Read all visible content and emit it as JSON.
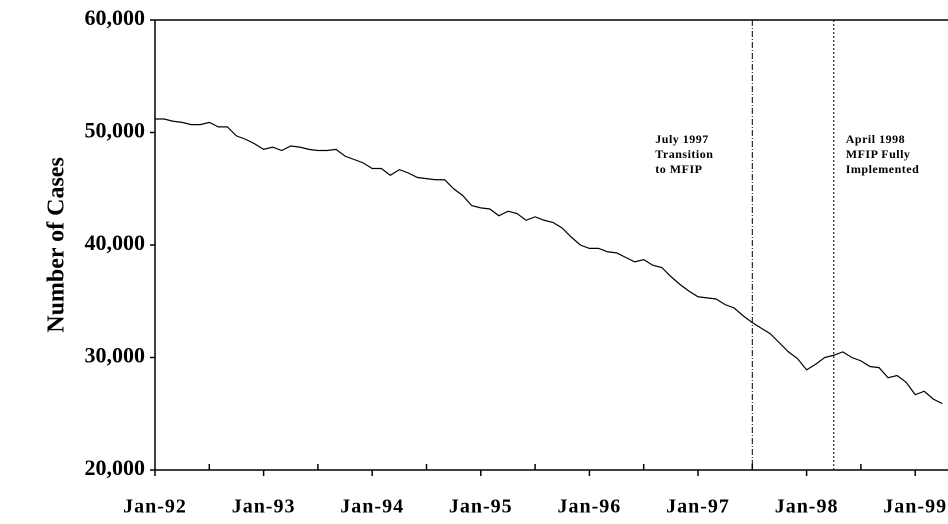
{
  "chart_data": {
    "type": "line",
    "y_label": "Number of Cases",
    "categories": [
      "Jan-92",
      null,
      null,
      null,
      null,
      null,
      null,
      null,
      null,
      null,
      null,
      null,
      "Jan-93",
      null,
      null,
      null,
      null,
      null,
      null,
      null,
      null,
      null,
      null,
      null,
      "Jan-94",
      null,
      null,
      null,
      null,
      null,
      null,
      null,
      null,
      null,
      null,
      null,
      "Jan-95",
      null,
      null,
      null,
      null,
      null,
      null,
      null,
      null,
      null,
      null,
      null,
      "Jan-96",
      null,
      null,
      null,
      null,
      null,
      null,
      null,
      null,
      null,
      null,
      null,
      "Jan-97",
      null,
      null,
      null,
      null,
      null,
      null,
      null,
      null,
      null,
      null,
      null,
      "Jan-98",
      null,
      null,
      null,
      null,
      null,
      null,
      null,
      null,
      null,
      null,
      null,
      "Jan-99",
      null,
      null,
      null
    ],
    "values": [
      51200,
      51200,
      51000,
      50900,
      50700,
      50700,
      50900,
      50500,
      50500,
      49700,
      49400,
      49000,
      48500,
      48700,
      48400,
      48800,
      48700,
      48500,
      48400,
      48400,
      48500,
      47900,
      47600,
      47300,
      46800,
      46800,
      46200,
      46700,
      46400,
      46000,
      45900,
      45800,
      45800,
      45000,
      44400,
      43500,
      43300,
      43200,
      42600,
      43000,
      42800,
      42200,
      42500,
      42200,
      42000,
      41500,
      40700,
      40000,
      39700,
      39700,
      39400,
      39300,
      38900,
      38500,
      38700,
      38200,
      38000,
      37200,
      36500,
      35900,
      35400,
      35300,
      35200,
      34700,
      34400,
      33700,
      33100,
      32600,
      32100,
      31300,
      30500,
      29900,
      28900,
      29400,
      30000,
      30200,
      30500,
      30000,
      29700,
      29200,
      29100,
      28200,
      28400,
      27800,
      26700,
      27000,
      26300,
      25900
    ],
    "color": "#000000",
    "ylim": [
      20000,
      60000
    ],
    "yticks": [
      {
        "value": 20000,
        "label": "20,000"
      },
      {
        "value": 30000,
        "label": "30,000"
      },
      {
        "value": 40000,
        "label": "40,000"
      },
      {
        "value": 50000,
        "label": "50,000"
      },
      {
        "value": 60000,
        "label": "60,000"
      }
    ],
    "annotations": [
      {
        "index": 66,
        "style": "dash-dot",
        "side": "left",
        "lines": [
          "July 1997",
          "Transition",
          "to MFIP"
        ]
      },
      {
        "index": 75,
        "style": "dotted",
        "side": "right",
        "lines": [
          "April 1998",
          "MFIP Fully",
          "Implemented"
        ]
      }
    ]
  }
}
